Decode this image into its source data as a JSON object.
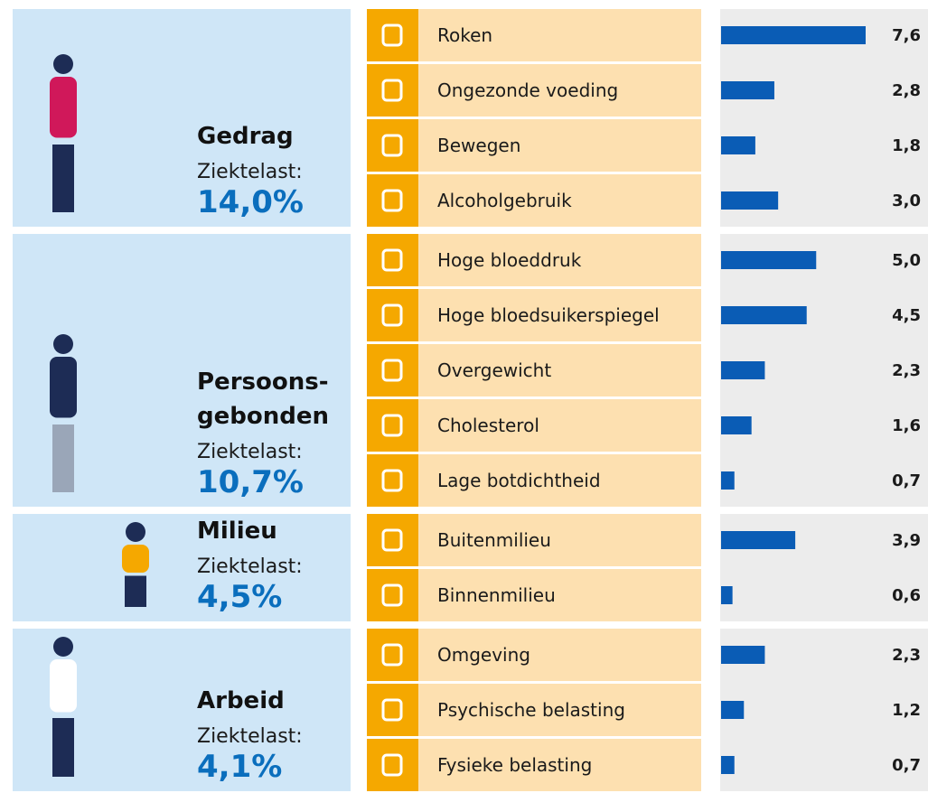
{
  "chart_data": {
    "type": "bar",
    "color": "#0a5cb5",
    "groups": [
      {
        "title": [
          "Gedrag"
        ],
        "subtitle": "Ziektelast:",
        "share": 14.0,
        "share_label": "14,0%",
        "categories": [
          "Roken",
          "Ongezonde voeding",
          "Bewegen",
          "Alcoholgebruik"
        ],
        "values": [
          7.6,
          2.8,
          1.8,
          3.0
        ],
        "value_labels": [
          "7,6",
          "2,8",
          "1,8",
          "3,0"
        ]
      },
      {
        "title": [
          "Persoons-",
          "gebonden"
        ],
        "subtitle": "Ziektelast:",
        "share": 10.7,
        "share_label": "10,7%",
        "categories": [
          "Hoge bloeddruk",
          "Hoge bloedsuikerspiegel",
          "Overgewicht",
          "Cholesterol",
          "Lage botdichtheid"
        ],
        "values": [
          5.0,
          4.5,
          2.3,
          1.6,
          0.7
        ],
        "value_labels": [
          "5,0",
          "4,5",
          "2,3",
          "1,6",
          "0,7"
        ]
      },
      {
        "title": [
          "Milieu"
        ],
        "subtitle": "Ziektelast:",
        "share": 4.5,
        "share_label": "4,5%",
        "categories": [
          "Buitenmilieu",
          "Binnenmilieu"
        ],
        "values": [
          3.9,
          0.6
        ],
        "value_labels": [
          "3,9",
          "0,6"
        ]
      },
      {
        "title": [
          "Arbeid"
        ],
        "subtitle": "Ziektelast:",
        "share": 4.1,
        "share_label": "4,1%",
        "categories": [
          "Omgeving",
          "Psychische belasting",
          "Fysieke belasting"
        ],
        "values": [
          2.3,
          1.2,
          0.7
        ],
        "value_labels": [
          "2,3",
          "1,2",
          "0,7"
        ]
      }
    ]
  }
}
